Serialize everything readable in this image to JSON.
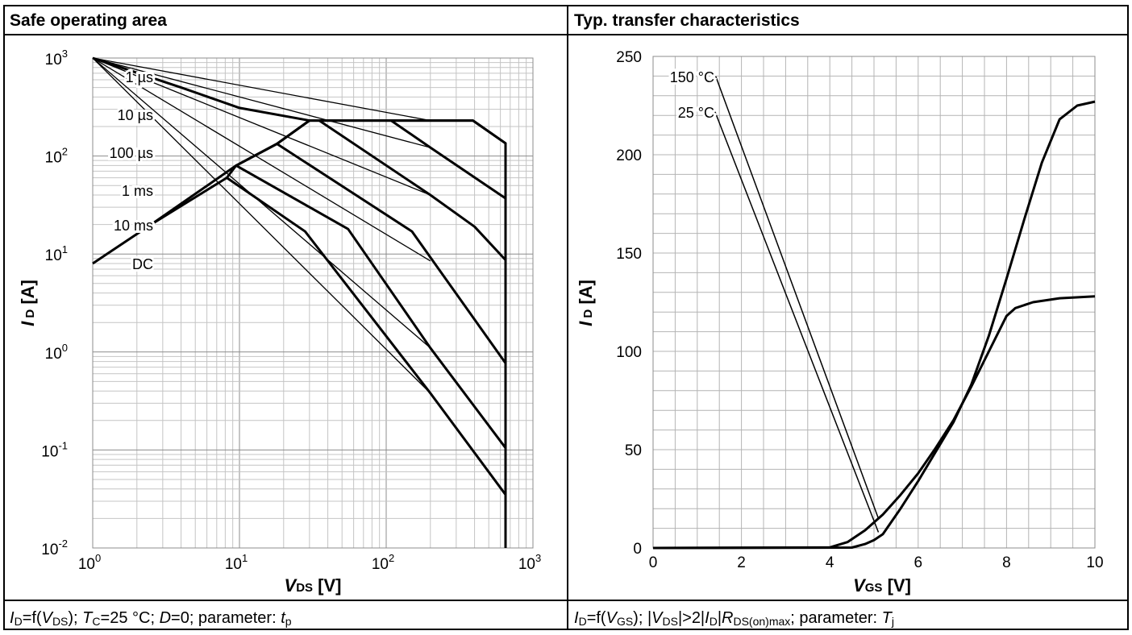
{
  "left_panel": {
    "title": "Safe operating area",
    "caption": {
      "id": "I",
      "id_sub": "D",
      "f": "=f(",
      "v": "V",
      "v_sub": "DS",
      "rest1": ");  ",
      "t": "T",
      "t_sub": "C",
      "rest2": "=25 °C; ",
      "d": "D",
      "rest3": "=0; parameter: ",
      "p": "t",
      "p_sub": "p"
    }
  },
  "right_panel": {
    "title": "Typ. transfer characteristics",
    "caption": {
      "id": "I",
      "id_sub": "D",
      "f": "=f(",
      "v": "V",
      "v_sub": "GS",
      "rest1": "); |",
      "v2": "V",
      "v2_sub": "DS",
      "rest2": "|>2|",
      "id2": "I",
      "id2_sub": "D",
      "rest3": "|",
      "r": "R",
      "r_sub": "DS(on)max",
      "rest4": "; parameter: ",
      "p": "T",
      "p_sub": "j"
    }
  },
  "chart_data": [
    {
      "type": "line",
      "title": "Safe operating area",
      "xlabel": "V_DS [V]",
      "ylabel": "I_D [A]",
      "xscale": "log",
      "yscale": "log",
      "xlim": [
        1,
        1000
      ],
      "ylim": [
        0.01,
        1000
      ],
      "x_tick_labels": [
        {
          "base": "10",
          "exp": "0"
        },
        {
          "base": "10",
          "exp": "1"
        },
        {
          "base": "10",
          "exp": "2"
        },
        {
          "base": "10",
          "exp": "3"
        }
      ],
      "y_tick_labels": [
        {
          "base": "10",
          "exp": "-2"
        },
        {
          "base": "10",
          "exp": "-1"
        },
        {
          "base": "10",
          "exp": "0"
        },
        {
          "base": "10",
          "exp": "1"
        },
        {
          "base": "10",
          "exp": "2"
        },
        {
          "base": "10",
          "exp": "3"
        }
      ],
      "grid": true,
      "series": [
        {
          "name": "1 µs",
          "points": [
            [
              1,
              1000
            ],
            [
              4,
              500
            ],
            [
              10,
              310
            ],
            [
              30,
              230
            ],
            [
              390,
              230
            ],
            [
              650,
              135
            ],
            [
              650,
              0.01
            ]
          ]
        },
        {
          "name": "10 µs",
          "points": [
            [
              108,
              230
            ],
            [
              200,
              122
            ],
            [
              650,
              37
            ]
          ]
        },
        {
          "name": "100 µs",
          "points": [
            [
              35,
              230
            ],
            [
              200,
              40
            ],
            [
              400,
              19
            ],
            [
              650,
              8.7
            ]
          ]
        },
        {
          "name": "1 ms",
          "points": [
            [
              2.5,
              20
            ],
            [
              9.5,
              80
            ],
            [
              18,
              133
            ],
            [
              30,
              230
            ]
          ]
        },
        {
          "name": "1 ms",
          "points": [
            [
              18,
              133
            ],
            [
              150,
              17
            ],
            [
              650,
              0.77
            ]
          ]
        },
        {
          "name": "10 ms",
          "points": [
            [
              9.5,
              80
            ],
            [
              55,
              18
            ],
            [
              200,
              1.1
            ],
            [
              650,
              0.105
            ]
          ]
        },
        {
          "name": "DC",
          "points": [
            [
              8.2,
              60
            ],
            [
              28,
              17
            ],
            [
              200,
              0.38
            ],
            [
              650,
              0.035
            ]
          ]
        }
      ],
      "envelope": {
        "points": [
          [
            1,
            8
          ],
          [
            2.5,
            20
          ],
          [
            8.2,
            60
          ],
          [
            9.5,
            80
          ],
          [
            18,
            133
          ],
          [
            30,
            230
          ],
          [
            390,
            230
          ],
          [
            650,
            135
          ],
          [
            650,
            0.01
          ]
        ]
      },
      "leaders": [
        {
          "label": "1 µs",
          "from": [
            1,
            1000
          ],
          "to": [
            200,
            230
          ]
        },
        {
          "label": "10 µs",
          "from": [
            1,
            1000
          ],
          "to": [
            200,
            122
          ]
        },
        {
          "label": "100 µs",
          "from": [
            1,
            1000
          ],
          "to": [
            200,
            40
          ]
        },
        {
          "label": "1 ms",
          "from": [
            1,
            1000
          ],
          "to": [
            200,
            8.5
          ]
        },
        {
          "label": "10 ms",
          "from": [
            1,
            1000
          ],
          "to": [
            200,
            1.1
          ]
        },
        {
          "label": "DC",
          "from": [
            1,
            1000
          ],
          "to": [
            200,
            0.38
          ]
        }
      ],
      "annotations": [
        "1 µs",
        "10 µs",
        "100 µs",
        "1 ms",
        "10 ms",
        "DC"
      ]
    },
    {
      "type": "line",
      "title": "Typ. transfer characteristics",
      "xlabel": "V_GS [V]",
      "ylabel": "I_D [A]",
      "xlim": [
        0,
        10
      ],
      "ylim": [
        0,
        250
      ],
      "x_ticks": [
        0,
        2,
        4,
        6,
        8,
        10
      ],
      "y_ticks": [
        0,
        50,
        100,
        150,
        200,
        250
      ],
      "grid": true,
      "series": [
        {
          "name": "150 °C",
          "points": [
            [
              0,
              0
            ],
            [
              4,
              0.3
            ],
            [
              4.4,
              3
            ],
            [
              4.8,
              9
            ],
            [
              5.2,
              17
            ],
            [
              5.6,
              27
            ],
            [
              6.0,
              38
            ],
            [
              6.4,
              51
            ],
            [
              6.8,
              65
            ],
            [
              7.2,
              82
            ],
            [
              7.6,
              100
            ],
            [
              8.0,
              118
            ],
            [
              8.2,
              122
            ],
            [
              8.6,
              125
            ],
            [
              9.2,
              127
            ],
            [
              10,
              128
            ]
          ]
        },
        {
          "name": "25 °C",
          "points": [
            [
              0,
              0
            ],
            [
              4.5,
              0.2
            ],
            [
              4.8,
              2
            ],
            [
              5.0,
              4
            ],
            [
              5.2,
              7
            ],
            [
              5.6,
              20
            ],
            [
              6.0,
              34
            ],
            [
              6.4,
              49
            ],
            [
              6.8,
              64
            ],
            [
              7.2,
              83
            ],
            [
              7.6,
              108
            ],
            [
              8.0,
              137
            ],
            [
              8.4,
              167
            ],
            [
              8.8,
              196
            ],
            [
              9.2,
              218
            ],
            [
              9.6,
              225
            ],
            [
              10,
              227
            ]
          ]
        }
      ],
      "leaders": [
        {
          "label": "150 °C",
          "from": [
            1.4,
            241
          ],
          "to": [
            5.1,
            15
          ]
        },
        {
          "label": "25 °C",
          "from": [
            1.4,
            222
          ],
          "to": [
            5.1,
            8
          ]
        }
      ],
      "annotations": [
        "150 °C",
        "25 °C"
      ]
    }
  ]
}
